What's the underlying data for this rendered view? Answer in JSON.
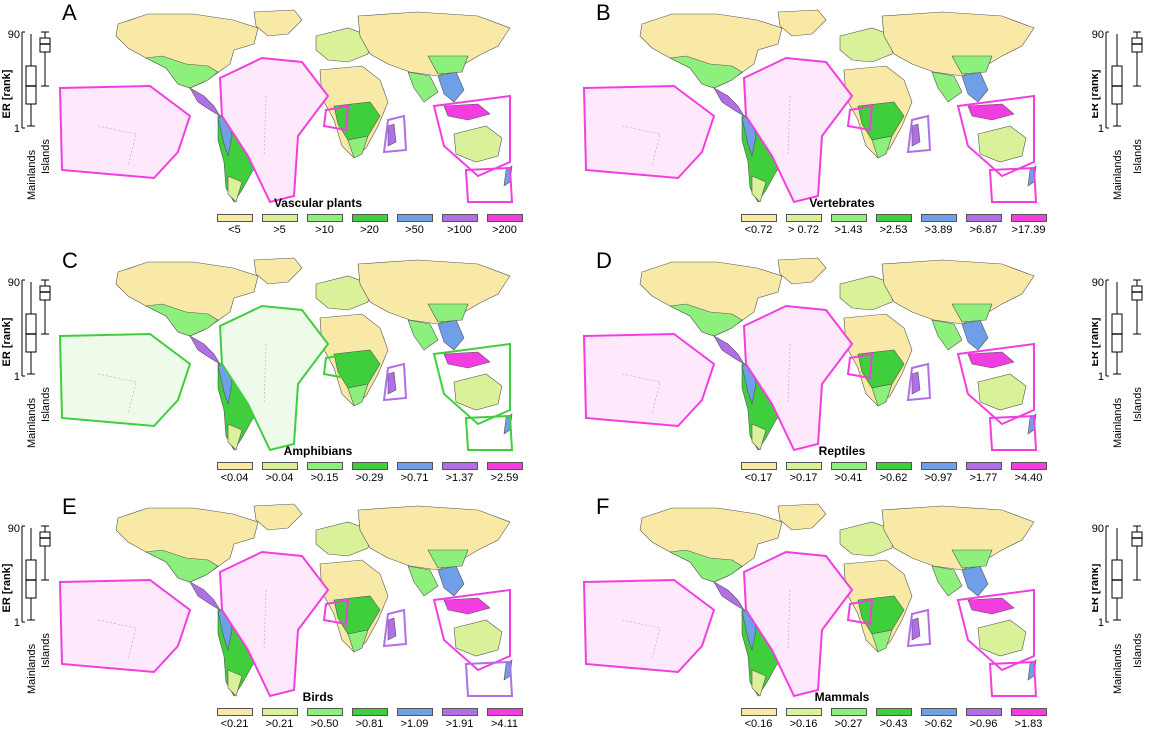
{
  "colors": [
    "#f8eaa6",
    "#d9f29a",
    "#8ef07c",
    "#3fce3c",
    "#6f9fe6",
    "#b06ee8",
    "#f23ee0"
  ],
  "boxplot": {
    "y_top": "90",
    "y_bottom": "1",
    "ylabel": "ER [rank]",
    "x1": "Mainlands",
    "x2": "Islands"
  },
  "panels": [
    {
      "letter": "A",
      "title": "Vascular plants",
      "legend": [
        "<5",
        ">5",
        ">10",
        ">20",
        ">50",
        ">100",
        ">200"
      ],
      "pacific_color": 6,
      "sw_pacific_color": 6,
      "side": "left"
    },
    {
      "letter": "B",
      "title": "Vertebrates",
      "legend": [
        "<0.72",
        "> 0.72",
        ">1.43",
        ">2.53",
        ">3.89",
        ">6.87",
        ">17.39"
      ],
      "pacific_color": 6,
      "sw_pacific_color": 6,
      "side": "right"
    },
    {
      "letter": "C",
      "title": "Amphibians",
      "legend": [
        "<0.04",
        ">0.04",
        ">0.15",
        ">0.29",
        ">0.71",
        ">1.37",
        ">2.59"
      ],
      "pacific_color": 3,
      "sw_pacific_color": 3,
      "side": "left"
    },
    {
      "letter": "D",
      "title": "Reptiles",
      "legend": [
        "<0.17",
        ">0.17",
        ">0.41",
        ">0.62",
        ">0.97",
        ">1.77",
        ">4.40"
      ],
      "pacific_color": 6,
      "sw_pacific_color": 6,
      "side": "right"
    },
    {
      "letter": "E",
      "title": "Birds",
      "legend": [
        "<0.21",
        ">0.21",
        ">0.50",
        ">0.81",
        ">1.09",
        ">1.91",
        ">4.11"
      ],
      "pacific_color": 6,
      "sw_pacific_color": 5,
      "side": "left"
    },
    {
      "letter": "F",
      "title": "Mammals",
      "legend": [
        "<0.16",
        ">0.16",
        ">0.27",
        ">0.43",
        ">0.62",
        ">0.96",
        ">1.83"
      ],
      "pacific_color": 6,
      "sw_pacific_color": 6,
      "side": "right"
    }
  ]
}
